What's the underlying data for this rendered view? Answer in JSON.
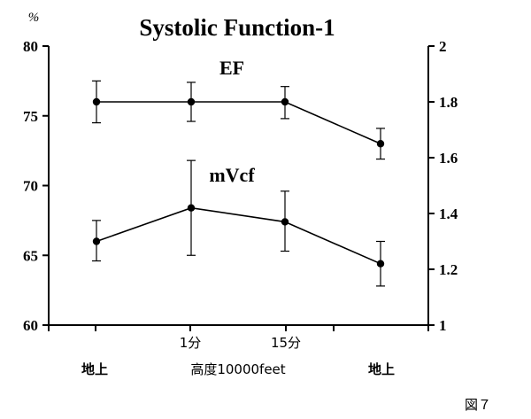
{
  "chart_data": {
    "type": "line",
    "title": "Systolic Function-1",
    "left_axis": {
      "unit": "%",
      "range": [
        60,
        80
      ],
      "ticks": [
        "60",
        "65",
        "70",
        "75",
        "80"
      ]
    },
    "right_axis": {
      "range": [
        1,
        2
      ],
      "ticks": [
        "1",
        "1.2",
        "1.4",
        "1.6",
        "1.8",
        "2"
      ]
    },
    "x_tick_labels_top": [
      "1分",
      "15分"
    ],
    "x_group_labels": [
      "地上",
      "高度10000feet",
      "地上"
    ],
    "series": [
      {
        "name": "EF",
        "axis": "left",
        "y": [
          76.0,
          76.0,
          76.0,
          73.0
        ],
        "err_low": [
          74.5,
          74.6,
          74.8,
          71.9
        ],
        "err_high": [
          77.5,
          77.4,
          77.1,
          74.1
        ]
      },
      {
        "name": "mVcf",
        "axis": "right",
        "y": [
          1.3,
          1.42,
          1.37,
          1.22
        ],
        "err_low": [
          1.23,
          1.25,
          1.265,
          1.14
        ],
        "err_high": [
          1.375,
          1.59,
          1.48,
          1.3
        ]
      }
    ],
    "grid": false
  },
  "figure_label": "図７"
}
